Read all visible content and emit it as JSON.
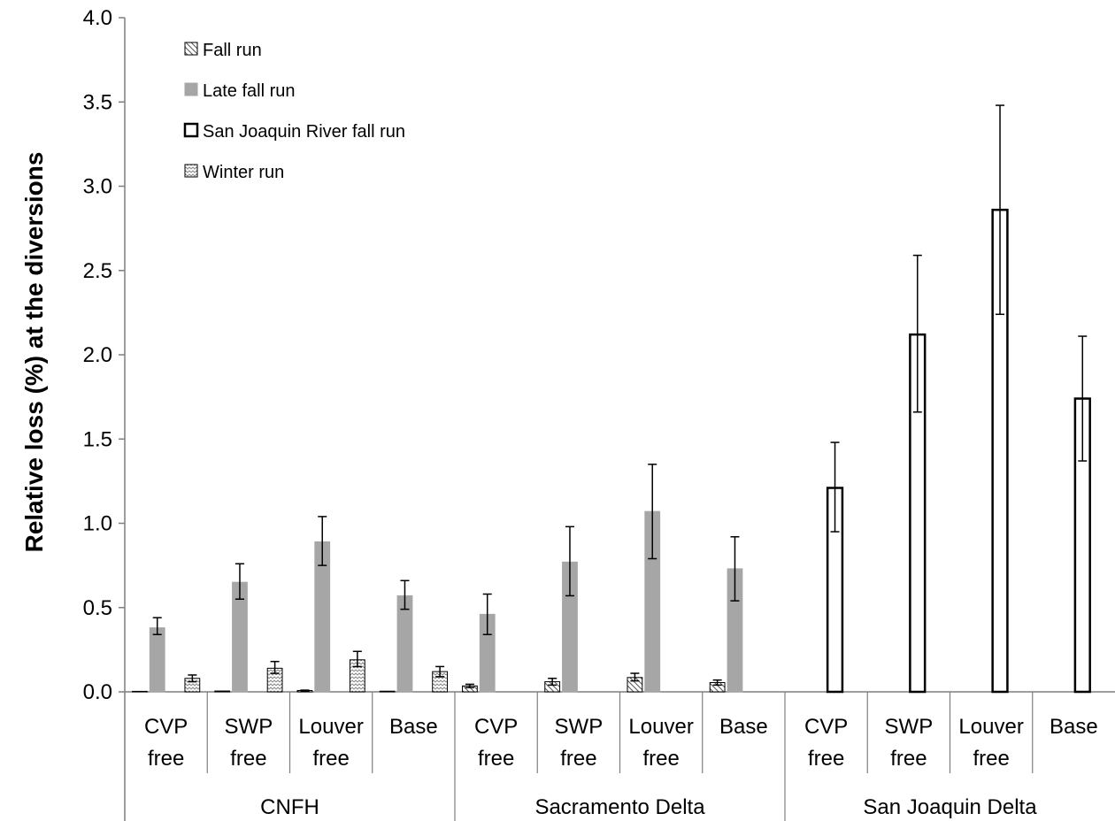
{
  "chart_data": {
    "type": "bar",
    "ylabel": "Relative loss (%) at the diversions",
    "xlabel": "",
    "ylim": [
      0,
      4.0
    ],
    "yticks": [
      "0.0",
      "0.5",
      "1.0",
      "1.5",
      "2.0",
      "2.5",
      "3.0",
      "3.5",
      "4.0"
    ],
    "grid": false,
    "legend_position": "top-left",
    "groups": [
      {
        "name": "CNFH",
        "categories": [
          [
            "CVP",
            "free"
          ],
          [
            "SWP",
            "free"
          ],
          [
            "Louver",
            "free"
          ],
          [
            "Base"
          ]
        ]
      },
      {
        "name": "Sacramento Delta",
        "categories": [
          [
            "CVP",
            "free"
          ],
          [
            "SWP",
            "free"
          ],
          [
            "Louver",
            "free"
          ],
          [
            "Base"
          ]
        ]
      },
      {
        "name": "San Joaquin Delta",
        "categories": [
          [
            "CVP",
            "free"
          ],
          [
            "SWP",
            "free"
          ],
          [
            "Louver",
            "free"
          ],
          [
            "Base"
          ]
        ]
      }
    ],
    "series": [
      {
        "name": "Fall run",
        "pattern": "hatch-back",
        "values": [
          0.003,
          0.005,
          0.008,
          0.004,
          0.035,
          0.06,
          0.085,
          0.055,
          0,
          0,
          0,
          0
        ],
        "err_low": [
          0,
          0,
          0.002,
          0,
          0.01,
          0.02,
          0.02,
          0.015,
          0,
          0,
          0,
          0
        ],
        "err_high": [
          0,
          0,
          0.002,
          0,
          0.01,
          0.02,
          0.025,
          0.015,
          0,
          0,
          0,
          0
        ]
      },
      {
        "name": "Late fall run",
        "pattern": "solid-gray",
        "values": [
          0.38,
          0.65,
          0.89,
          0.57,
          0.46,
          0.77,
          1.07,
          0.73,
          0,
          0,
          0,
          0
        ],
        "err_low": [
          0.04,
          0.1,
          0.14,
          0.08,
          0.12,
          0.2,
          0.28,
          0.19,
          0,
          0,
          0,
          0
        ],
        "err_high": [
          0.06,
          0.11,
          0.15,
          0.09,
          0.12,
          0.21,
          0.28,
          0.19,
          0,
          0,
          0,
          0
        ]
      },
      {
        "name": "San Joaquin River fall run",
        "pattern": "outline",
        "values": [
          0,
          0,
          0,
          0,
          0,
          0,
          0,
          0,
          1.21,
          2.12,
          2.86,
          1.74
        ],
        "err_low": [
          0,
          0,
          0,
          0,
          0,
          0,
          0,
          0,
          0.26,
          0.46,
          0.62,
          0.37
        ],
        "err_high": [
          0,
          0,
          0,
          0,
          0,
          0,
          0,
          0,
          0.27,
          0.47,
          0.62,
          0.37
        ]
      },
      {
        "name": "Winter run",
        "pattern": "zigzag",
        "values": [
          0.08,
          0.14,
          0.19,
          0.12,
          0,
          0,
          0,
          0,
          0,
          0,
          0,
          0
        ],
        "err_low": [
          0.02,
          0.03,
          0.04,
          0.03,
          0,
          0,
          0,
          0,
          0,
          0,
          0,
          0
        ],
        "err_high": [
          0.02,
          0.04,
          0.05,
          0.03,
          0,
          0,
          0,
          0,
          0,
          0,
          0,
          0
        ]
      }
    ],
    "colors": {
      "late_fall": "#a6a6a6",
      "axis": "#7f7f7f",
      "bar_outline": "#000000"
    }
  }
}
